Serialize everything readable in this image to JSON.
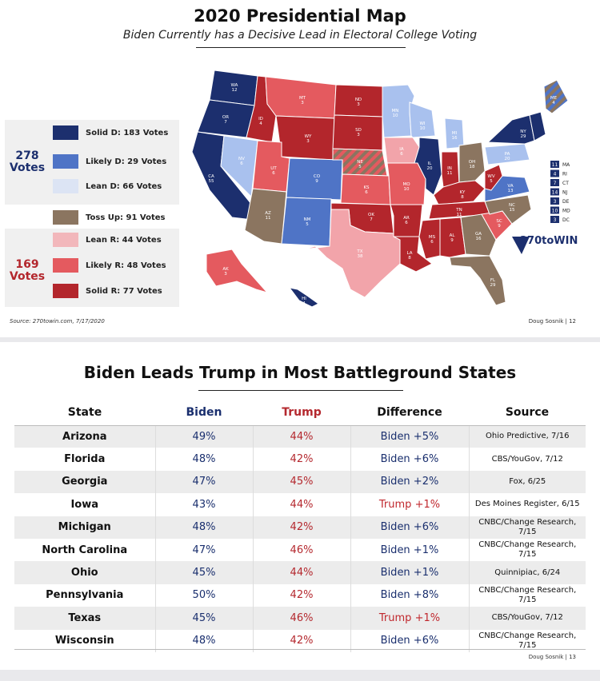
{
  "slide1": {
    "title": "2020 Presidential Map",
    "subtitle": "Biden Currently has a Decisive Lead in Electoral College Voting",
    "legend": [
      {
        "label": "Solid D: 183 Votes",
        "color": "#1c2f6e"
      },
      {
        "label": "Likely D: 29 Votes",
        "color": "#4f74c6"
      },
      {
        "label": "Lean D: 66 Votes",
        "color": "#dce4f4"
      },
      {
        "label": "Toss Up: 91 Votes",
        "color": "#8b7560"
      },
      {
        "label": "Lean R: 44 Votes",
        "color": "#f2b7bb"
      },
      {
        "label": "Likely R: 48 Votes",
        "color": "#e45a5f"
      },
      {
        "label": "Solid R: 77 Votes",
        "color": "#b3262c"
      }
    ],
    "dem_total": {
      "number": "278",
      "word": "Votes"
    },
    "rep_total": {
      "number": "169",
      "word": "Votes"
    },
    "source": "Source: 270towin.com, 7/17/2020",
    "footer": "Doug Sosnik | 12",
    "logo": "270toWIN",
    "states": [
      {
        "abbr": "WA",
        "ev": "12"
      },
      {
        "abbr": "OR",
        "ev": "7"
      },
      {
        "abbr": "CA",
        "ev": "55"
      },
      {
        "abbr": "NV",
        "ev": "6"
      },
      {
        "abbr": "ID",
        "ev": "4"
      },
      {
        "abbr": "MT",
        "ev": "3"
      },
      {
        "abbr": "WY",
        "ev": "3"
      },
      {
        "abbr": "UT",
        "ev": "6"
      },
      {
        "abbr": "AZ",
        "ev": "11"
      },
      {
        "abbr": "CO",
        "ev": "9"
      },
      {
        "abbr": "NM",
        "ev": "5"
      },
      {
        "abbr": "ND",
        "ev": "3"
      },
      {
        "abbr": "SD",
        "ev": "3"
      },
      {
        "abbr": "NE",
        "ev": "5"
      },
      {
        "abbr": "KS",
        "ev": "6"
      },
      {
        "abbr": "OK",
        "ev": "7"
      },
      {
        "abbr": "TX",
        "ev": "38"
      },
      {
        "abbr": "MN",
        "ev": "10"
      },
      {
        "abbr": "IA",
        "ev": "6"
      },
      {
        "abbr": "MO",
        "ev": "10"
      },
      {
        "abbr": "AR",
        "ev": "6"
      },
      {
        "abbr": "LA",
        "ev": "8"
      },
      {
        "abbr": "WI",
        "ev": "10"
      },
      {
        "abbr": "IL",
        "ev": "20"
      },
      {
        "abbr": "MI",
        "ev": "16"
      },
      {
        "abbr": "IN",
        "ev": "11"
      },
      {
        "abbr": "OH",
        "ev": "18"
      },
      {
        "abbr": "KY",
        "ev": "8"
      },
      {
        "abbr": "TN",
        "ev": "11"
      },
      {
        "abbr": "MS",
        "ev": "6"
      },
      {
        "abbr": "AL",
        "ev": "9"
      },
      {
        "abbr": "GA",
        "ev": "16"
      },
      {
        "abbr": "FL",
        "ev": "29"
      },
      {
        "abbr": "SC",
        "ev": "9"
      },
      {
        "abbr": "NC",
        "ev": "15"
      },
      {
        "abbr": "VA",
        "ev": "13"
      },
      {
        "abbr": "WV",
        "ev": "5"
      },
      {
        "abbr": "PA",
        "ev": "20"
      },
      {
        "abbr": "NY",
        "ev": "29"
      },
      {
        "abbr": "ME",
        "ev": "4"
      },
      {
        "abbr": "AK",
        "ev": "3"
      },
      {
        "abbr": "HI",
        "ev": "4"
      }
    ],
    "small_states": [
      {
        "ev": "11",
        "abbr": "MA"
      },
      {
        "ev": "4",
        "abbr": "RI"
      },
      {
        "ev": "7",
        "abbr": "CT"
      },
      {
        "ev": "14",
        "abbr": "NJ"
      },
      {
        "ev": "3",
        "abbr": "DE"
      },
      {
        "ev": "10",
        "abbr": "MD"
      },
      {
        "ev": "3",
        "abbr": "DC"
      }
    ]
  },
  "chart_data": {
    "type": "table",
    "title": "Biden Leads Trump in Most Battleground States",
    "columns": [
      "State",
      "Biden",
      "Trump",
      "Difference",
      "Source"
    ],
    "rows": [
      {
        "state": "Arizona",
        "biden": "49%",
        "trump": "44%",
        "difference": "Biden +5%",
        "source": "Ohio Predictive, 7/16"
      },
      {
        "state": "Florida",
        "biden": "48%",
        "trump": "42%",
        "difference": "Biden +6%",
        "source": "CBS/YouGov, 7/12"
      },
      {
        "state": "Georgia",
        "biden": "47%",
        "trump": "45%",
        "difference": "Biden +2%",
        "source": "Fox, 6/25"
      },
      {
        "state": "Iowa",
        "biden": "43%",
        "trump": "44%",
        "difference": "Trump +1%",
        "source": "Des Moines Register, 6/15"
      },
      {
        "state": "Michigan",
        "biden": "48%",
        "trump": "42%",
        "difference": "Biden +6%",
        "source": "CNBC/Change Research, 7/15"
      },
      {
        "state": "North Carolina",
        "biden": "47%",
        "trump": "46%",
        "difference": "Biden +1%",
        "source": "CNBC/Change Research, 7/15"
      },
      {
        "state": "Ohio",
        "biden": "45%",
        "trump": "44%",
        "difference": "Biden +1%",
        "source": "Quinnipiac, 6/24"
      },
      {
        "state": "Pennsylvania",
        "biden": "50%",
        "trump": "42%",
        "difference": "Biden +8%",
        "source": "CNBC/Change Research, 7/15"
      },
      {
        "state": "Texas",
        "biden": "45%",
        "trump": "46%",
        "difference": "Trump +1%",
        "source": "CBS/YouGov, 7/12"
      },
      {
        "state": "Wisconsin",
        "biden": "48%",
        "trump": "42%",
        "difference": "Biden +6%",
        "source": "CNBC/Change Research, 7/15"
      }
    ],
    "colors": {
      "biden": "#1a2f6e",
      "trump": "#b4282e"
    }
  },
  "slide2": {
    "footer": "Doug Sosnik | 13"
  }
}
